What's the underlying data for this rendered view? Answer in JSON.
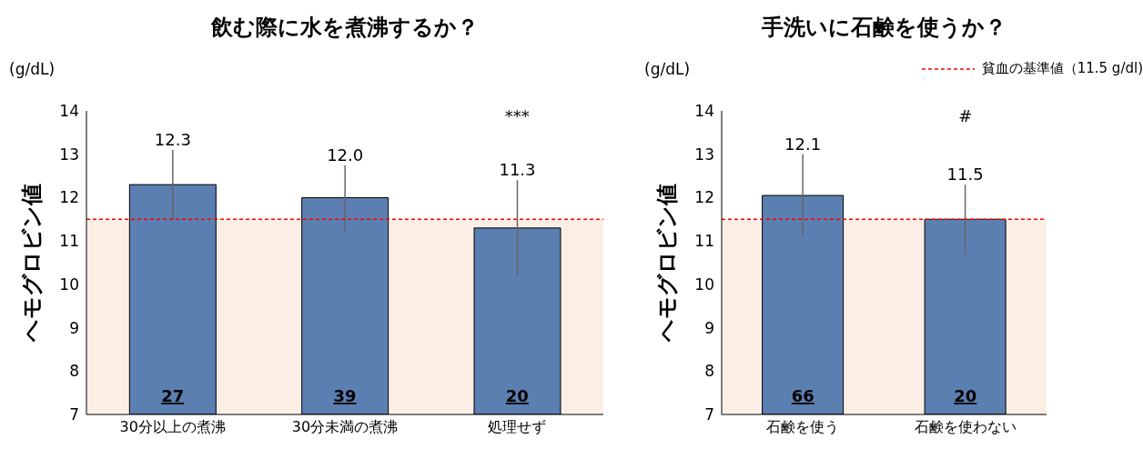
{
  "chart_data": [
    {
      "type": "bar",
      "title": "飲む際に水を煮沸するか？",
      "ylabel": "ヘモグロビン値",
      "categories": [
        "30分以上の煮沸",
        "30分未満の煮沸",
        "処理せず"
      ],
      "values": [
        12.3,
        12.0,
        11.3
      ],
      "color": "#5b7fb0",
      "errors": [
        [
          11.5,
          13.1
        ],
        [
          11.2,
          12.75
        ],
        [
          10.2,
          12.4
        ]
      ],
      "value_labels": [
        "12.3",
        "12.0",
        "11.3"
      ],
      "ylim": [
        7,
        14
      ],
      "yticks": [
        7,
        8,
        9,
        10,
        11,
        12,
        13,
        14
      ],
      "grid": false,
      "legend": false,
      "ref_lines": [
        {
          "axis": "y",
          "value": 11.5,
          "color": "#ff0000",
          "line_style": "dashed"
        }
      ],
      "bands": [
        {
          "axis": "y",
          "from": 7,
          "to": 11.5,
          "color": "#fbefe5"
        }
      ],
      "annotations": [
        "(g/dL)",
        "27",
        "39",
        "20",
        "***"
      ]
    },
    {
      "type": "bar",
      "title": "手洗いに石鹸を使うか？",
      "ylabel": "ヘモグロビン値",
      "categories": [
        "石鹸を使う",
        "石鹸を使わない"
      ],
      "values": [
        12.05,
        11.5
      ],
      "color": "#5b7fb0",
      "errors": [
        [
          11.1,
          13.0
        ],
        [
          10.7,
          12.3
        ]
      ],
      "value_labels": [
        "12.1",
        "11.5"
      ],
      "ylim": [
        7,
        14
      ],
      "yticks": [
        7,
        8,
        9,
        10,
        11,
        12,
        13,
        14
      ],
      "grid": false,
      "legend": "top right",
      "ref_lines": [
        {
          "axis": "y",
          "value": 11.5,
          "label": "貧血の基準値（11.5 g/dl)",
          "color": "#ff0000",
          "line_style": "dashed"
        }
      ],
      "bands": [
        {
          "axis": "y",
          "from": 7,
          "to": 11.5,
          "color": "#fbefe5"
        }
      ],
      "annotations": [
        "(g/dL)",
        "66",
        "20",
        "#"
      ]
    }
  ]
}
